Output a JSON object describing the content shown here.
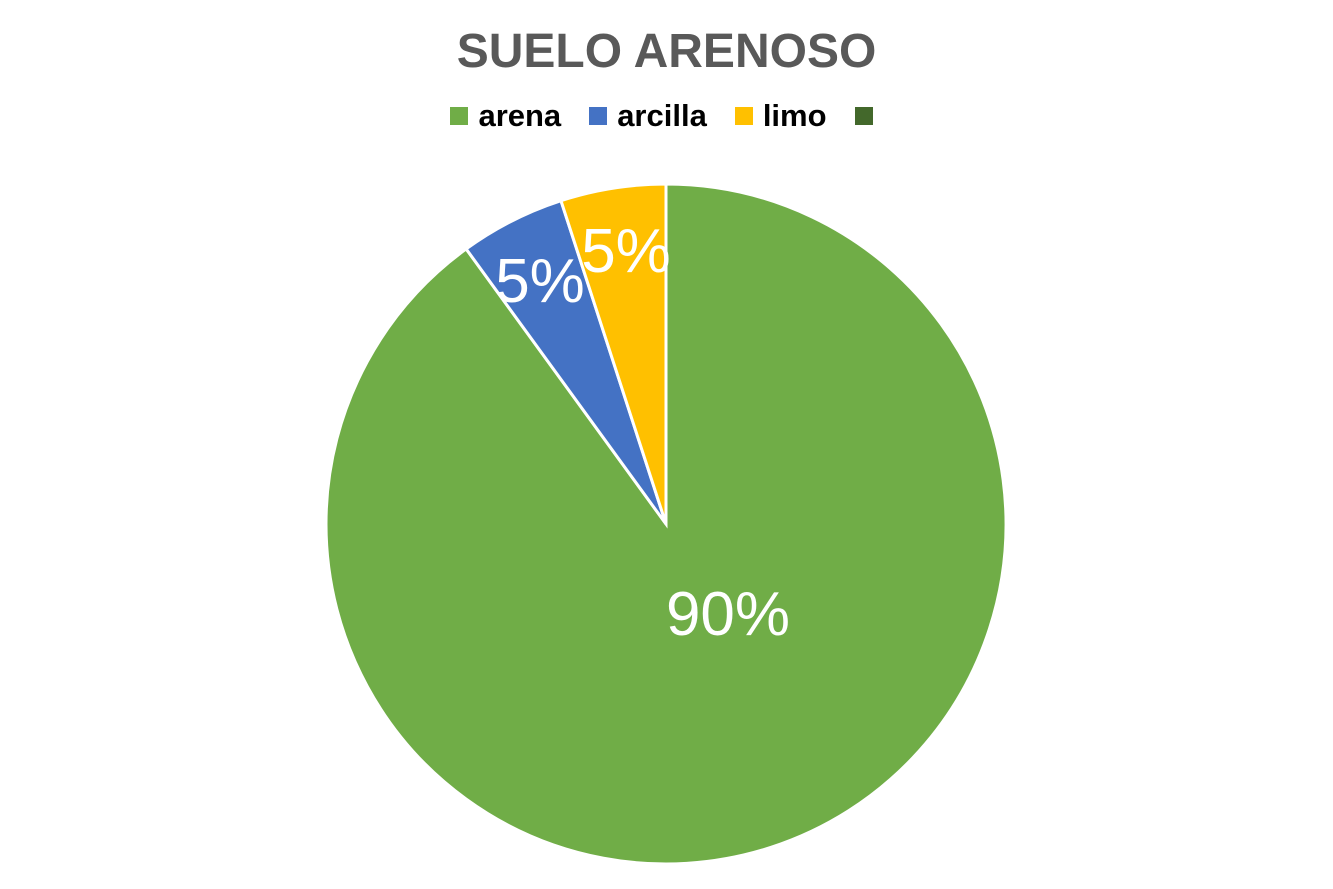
{
  "chart_data": {
    "type": "pie",
    "title": "SUELO ARENOSO",
    "categories": [
      "arena",
      "arcilla",
      "limo",
      ""
    ],
    "values": [
      90,
      5,
      5,
      0
    ],
    "labels": [
      "90%",
      "5%",
      "5%",
      ""
    ],
    "colors": [
      "#70AD47",
      "#4472C4",
      "#FFC000",
      "#43682B"
    ],
    "legend_position": "top"
  }
}
